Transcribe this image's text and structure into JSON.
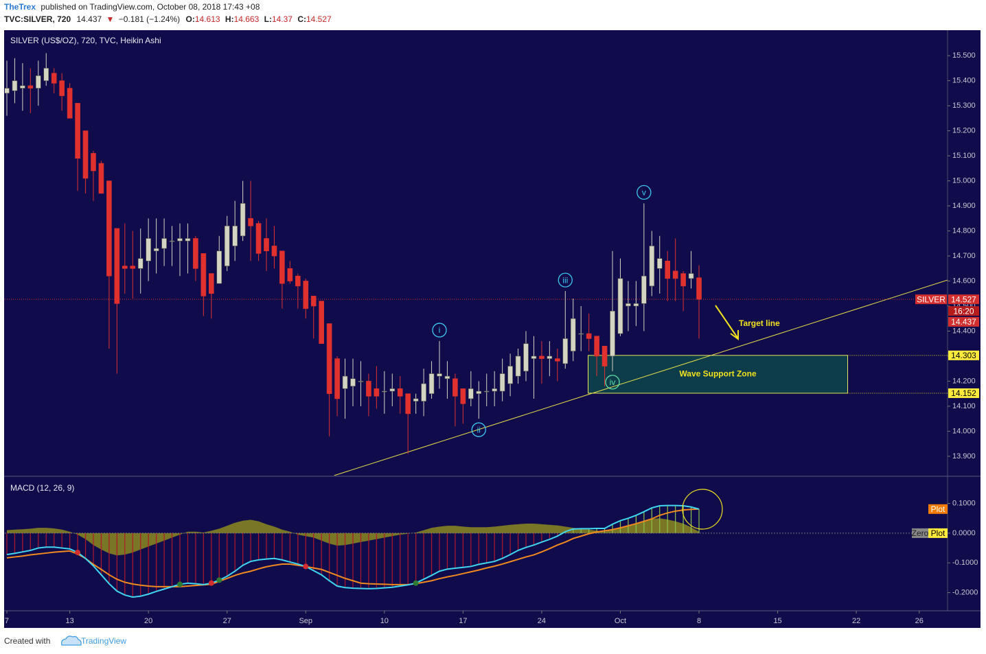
{
  "header": {
    "author": "TheTrex",
    "published": "published on TradingView.com, October 08, 2018 17:43 +08",
    "symbol": "TVC:SILVER, 720",
    "price": 14.437,
    "arrow": "▼",
    "change": "−0.181 (−1.24%)",
    "ohlc_labels": [
      "O:",
      "H:",
      "L:",
      "C:"
    ]
  },
  "chart_data": [
    {
      "type": "candlestick",
      "title": "SILVER (US$/OZ), 720, TVC, Heikin Ashi",
      "open": [
        15.35,
        15.36,
        15.37,
        15.38,
        15.37,
        15.4,
        15.43,
        15.4,
        15.37,
        15.31,
        15.2,
        15.11,
        15.07,
        15.0,
        14.81,
        14.66,
        14.66,
        14.65,
        14.68,
        14.72,
        14.73,
        14.76,
        14.76,
        14.76,
        14.77,
        14.71,
        14.63,
        14.59,
        14.66,
        14.74,
        14.78,
        14.85,
        14.83,
        14.77,
        14.74,
        14.72,
        14.65,
        14.62,
        14.6,
        14.54,
        14.52,
        14.43,
        14.29,
        14.17,
        14.18,
        14.2,
        14.2,
        14.17,
        14.16,
        14.16,
        14.17,
        14.15,
        14.12,
        14.12,
        14.15,
        14.22,
        14.21,
        14.21,
        14.17,
        14.13,
        14.15,
        14.16,
        14.16,
        14.16,
        14.19,
        14.22,
        14.24,
        14.29,
        14.3,
        14.29,
        14.29,
        14.27,
        14.32,
        14.39,
        14.39,
        14.38,
        14.34,
        14.3,
        14.39,
        14.5,
        14.5,
        14.51,
        14.58,
        14.65,
        14.68,
        14.64,
        14.63,
        14.61,
        14.613
      ],
      "high": [
        15.48,
        15.49,
        15.47,
        15.45,
        15.48,
        15.51,
        15.45,
        15.43,
        15.39,
        15.31,
        15.2,
        15.12,
        15.08,
        15.0,
        14.81,
        14.83,
        14.8,
        14.81,
        14.85,
        14.85,
        14.85,
        14.82,
        14.83,
        14.83,
        14.78,
        14.71,
        14.63,
        14.78,
        14.86,
        14.92,
        15.0,
        15.0,
        14.84,
        14.85,
        14.82,
        14.72,
        14.68,
        14.63,
        14.61,
        14.54,
        14.52,
        14.43,
        14.3,
        14.29,
        14.29,
        14.28,
        14.23,
        14.26,
        14.24,
        14.23,
        14.22,
        14.15,
        14.15,
        14.25,
        14.28,
        14.36,
        14.28,
        14.23,
        14.17,
        14.24,
        14.2,
        14.23,
        14.24,
        14.29,
        14.31,
        14.33,
        14.4,
        14.38,
        14.36,
        14.36,
        14.33,
        14.56,
        14.53,
        14.5,
        14.47,
        14.38,
        14.34,
        14.72,
        14.69,
        14.6,
        14.6,
        14.91,
        14.8,
        14.78,
        14.72,
        14.77,
        14.64,
        14.72,
        14.663
      ],
      "low": [
        15.26,
        15.31,
        15.28,
        15.27,
        15.3,
        15.38,
        15.35,
        15.28,
        15.25,
        14.96,
        14.95,
        14.92,
        14.95,
        14.33,
        14.23,
        14.55,
        14.53,
        14.55,
        14.6,
        14.63,
        14.66,
        14.66,
        14.62,
        14.63,
        14.6,
        14.46,
        14.45,
        14.59,
        14.64,
        14.68,
        14.76,
        14.68,
        14.68,
        14.64,
        14.65,
        14.49,
        14.59,
        14.49,
        14.45,
        14.37,
        14.35,
        13.98,
        14.06,
        14.05,
        14.1,
        14.1,
        14.06,
        14.09,
        14.07,
        14.1,
        14.07,
        13.91,
        14.07,
        14.06,
        14.13,
        14.17,
        14.13,
        14.02,
        14.03,
        14.1,
        14.05,
        14.1,
        14.1,
        14.12,
        14.14,
        14.19,
        14.2,
        14.13,
        14.19,
        14.22,
        14.2,
        14.25,
        14.28,
        14.32,
        14.32,
        14.22,
        14.18,
        14.24,
        14.38,
        14.4,
        14.42,
        14.4,
        14.54,
        14.55,
        14.52,
        14.52,
        14.48,
        14.57,
        14.37
      ],
      "close": [
        15.37,
        15.4,
        15.38,
        15.37,
        15.42,
        15.45,
        15.39,
        15.34,
        15.25,
        15.09,
        15.01,
        15.04,
        14.95,
        14.62,
        14.51,
        14.65,
        14.65,
        14.69,
        14.77,
        14.73,
        14.77,
        14.76,
        14.77,
        14.77,
        14.65,
        14.54,
        14.55,
        14.72,
        14.82,
        14.82,
        14.91,
        14.82,
        14.71,
        14.72,
        14.7,
        14.59,
        14.6,
        14.58,
        14.49,
        14.5,
        14.35,
        14.15,
        14.13,
        14.22,
        14.21,
        14.2,
        14.14,
        14.14,
        14.16,
        14.17,
        14.14,
        14.07,
        14.13,
        14.19,
        14.23,
        14.23,
        14.22,
        14.14,
        14.11,
        14.17,
        14.16,
        14.16,
        14.17,
        14.23,
        14.26,
        14.3,
        14.35,
        14.3,
        14.29,
        14.3,
        14.28,
        14.37,
        14.45,
        14.39,
        14.37,
        14.3,
        14.26,
        14.48,
        14.61,
        14.51,
        14.51,
        14.62,
        14.74,
        14.69,
        14.61,
        14.61,
        14.58,
        14.63,
        14.527
      ],
      "up_color": "#d4d4c2",
      "down_color": "#e0312e",
      "xlim": [
        -0.26,
        119.6
      ],
      "xticks": [
        {
          "value": 0,
          "label": "7"
        },
        {
          "value": 8,
          "label": "13"
        },
        {
          "value": 18,
          "label": "20"
        },
        {
          "value": 28,
          "label": "27"
        },
        {
          "value": 38,
          "label": "Sep"
        },
        {
          "value": 48,
          "label": "10"
        },
        {
          "value": 58,
          "label": "17"
        },
        {
          "value": 68,
          "label": "24"
        },
        {
          "value": 78,
          "label": "Oct"
        },
        {
          "value": 88,
          "label": "8"
        },
        {
          "value": 98,
          "label": "15"
        },
        {
          "value": 108,
          "label": "22"
        },
        {
          "value": 116,
          "label": "26"
        }
      ],
      "ylim": [
        13.823,
        15.599
      ],
      "yticks": [
        {
          "value": 13.9,
          "label": "13.900"
        },
        {
          "value": 14.0,
          "label": "14.000"
        },
        {
          "value": 14.1,
          "label": "14.100"
        },
        {
          "value": 14.2,
          "label": "14.200"
        },
        {
          "value": 14.3,
          "label": "14.300"
        },
        {
          "value": 14.4,
          "label": "14.400"
        },
        {
          "value": 14.5,
          "label": "14.500"
        },
        {
          "value": 14.6,
          "label": "14.600"
        },
        {
          "value": 14.7,
          "label": "14.700"
        },
        {
          "value": 14.8,
          "label": "14.800"
        },
        {
          "value": 14.9,
          "label": "14.900"
        },
        {
          "value": 15.0,
          "label": "15.000"
        },
        {
          "value": 15.1,
          "label": "15.100"
        },
        {
          "value": 15.2,
          "label": "15.200"
        },
        {
          "value": 15.3,
          "label": "15.300"
        },
        {
          "value": 15.4,
          "label": "15.400"
        },
        {
          "value": 15.5,
          "label": "15.500"
        }
      ],
      "last_tag": "SILVER",
      "countdown": "16:20",
      "wave_labels": [
        {
          "text": "i",
          "x": 55,
          "position": "above",
          "color": "#3fc8f2"
        },
        {
          "text": "ii",
          "x": 60,
          "position": "below",
          "color": "#3fc8f2"
        },
        {
          "text": "iii",
          "x": 71,
          "position": "above",
          "color": "#3fc8f2"
        },
        {
          "text": "iv",
          "x": 77,
          "position": "below",
          "color": "#5fe0a8"
        },
        {
          "text": "v",
          "x": 81,
          "position": "above",
          "color": "#3fc8f2"
        }
      ],
      "trend_line": {
        "x": [
          41.6,
          119.6
        ],
        "y": [
          13.823,
          14.604
        ],
        "color": "#e8e04a"
      },
      "support_zone": {
        "label": "Wave Support Zone",
        "x": [
          73.9,
          106.9
        ],
        "y": [
          14.152,
          14.303
        ]
      },
      "target_label": "Target line"
    },
    {
      "type": "macd",
      "title": "MACD (12, 26, 9)",
      "series": [
        {
          "color": "#3fd7f2",
          "values": [
            -0.072,
            -0.068,
            -0.063,
            -0.058,
            -0.05,
            -0.047,
            -0.047,
            -0.05,
            -0.053,
            -0.065,
            -0.085,
            -0.11,
            -0.14,
            -0.17,
            -0.195,
            -0.208,
            -0.215,
            -0.212,
            -0.205,
            -0.196,
            -0.188,
            -0.18,
            -0.172,
            -0.168,
            -0.17,
            -0.173,
            -0.168,
            -0.158,
            -0.145,
            -0.128,
            -0.108,
            -0.095,
            -0.09,
            -0.087,
            -0.085,
            -0.09,
            -0.097,
            -0.104,
            -0.112,
            -0.126,
            -0.14,
            -0.16,
            -0.178,
            -0.183,
            -0.185,
            -0.186,
            -0.187,
            -0.186,
            -0.184,
            -0.182,
            -0.178,
            -0.174,
            -0.168,
            -0.155,
            -0.142,
            -0.128,
            -0.121,
            -0.118,
            -0.115,
            -0.112,
            -0.105,
            -0.1,
            -0.095,
            -0.085,
            -0.072,
            -0.058,
            -0.048,
            -0.04,
            -0.03,
            -0.021,
            -0.01,
            0.005,
            0.014,
            0.015,
            0.015,
            0.016,
            0.016,
            0.03,
            0.042,
            0.05,
            0.06,
            0.072,
            0.085,
            0.092,
            0.093,
            0.093,
            0.092,
            0.088,
            0.081
          ]
        },
        {
          "color": "#f28a1e",
          "values": [
            -0.083,
            -0.08,
            -0.077,
            -0.073,
            -0.07,
            -0.067,
            -0.064,
            -0.062,
            -0.06,
            -0.07,
            -0.085,
            -0.105,
            -0.122,
            -0.14,
            -0.155,
            -0.165,
            -0.171,
            -0.175,
            -0.178,
            -0.18,
            -0.18,
            -0.18,
            -0.18,
            -0.178,
            -0.176,
            -0.174,
            -0.172,
            -0.162,
            -0.152,
            -0.142,
            -0.134,
            -0.128,
            -0.12,
            -0.113,
            -0.108,
            -0.104,
            -0.104,
            -0.108,
            -0.112,
            -0.117,
            -0.122,
            -0.132,
            -0.142,
            -0.152,
            -0.16,
            -0.168,
            -0.17,
            -0.171,
            -0.172,
            -0.173,
            -0.173,
            -0.173,
            -0.17,
            -0.165,
            -0.16,
            -0.153,
            -0.147,
            -0.142,
            -0.136,
            -0.13,
            -0.124,
            -0.117,
            -0.111,
            -0.104,
            -0.096,
            -0.088,
            -0.08,
            -0.073,
            -0.063,
            -0.052,
            -0.04,
            -0.03,
            -0.018,
            -0.01,
            -0.002,
            0.004,
            0.008,
            0.012,
            0.018,
            0.025,
            0.032,
            0.04,
            0.048,
            0.06,
            0.068,
            0.074,
            0.078,
            0.08,
            0.081
          ]
        },
        {
          "color": "#8c8a1e",
          "values": [
            0.01,
            0.012,
            0.013,
            0.015,
            0.018,
            0.018,
            0.016,
            0.012,
            0.005,
            -0.005,
            -0.02,
            -0.04,
            -0.055,
            -0.068,
            -0.075,
            -0.072,
            -0.065,
            -0.055,
            -0.045,
            -0.035,
            -0.025,
            -0.015,
            -0.005,
            0.005,
            0.005,
            0.002,
            0.008,
            0.015,
            0.025,
            0.035,
            0.042,
            0.045,
            0.04,
            0.03,
            0.022,
            0.012,
            0.005,
            -0.005,
            -0.01,
            -0.015,
            -0.025,
            -0.035,
            -0.042,
            -0.04,
            -0.035,
            -0.03,
            -0.025,
            -0.02,
            -0.015,
            -0.01,
            -0.005,
            -0.002,
            0.002,
            0.01,
            0.018,
            0.022,
            0.025,
            0.025,
            0.022,
            0.02,
            0.02,
            0.02,
            0.022,
            0.025,
            0.028,
            0.03,
            0.032,
            0.032,
            0.03,
            0.028,
            0.026,
            0.022,
            0.018,
            0.015,
            0.012,
            0.008,
            0.005,
            0.012,
            0.02,
            0.025,
            0.03,
            0.04,
            0.048,
            0.05,
            0.046,
            0.04,
            0.032,
            0.02,
            0.005
          ]
        }
      ],
      "bar_colors": [
        "#b0182a",
        "#8bc34a"
      ],
      "crossovers": [
        {
          "x": 9,
          "color": "#d32f2f"
        },
        {
          "x": 22,
          "color": "#2e7d32"
        },
        {
          "x": 26,
          "color": "#d32f2f"
        },
        {
          "x": 27,
          "color": "#2e7d32"
        },
        {
          "x": 38,
          "color": "#d32f2f"
        },
        {
          "x": 52,
          "color": "#2e7d32"
        }
      ],
      "ylim": [
        -0.261,
        0.189
      ],
      "yticks": [
        {
          "value": 0.1,
          "label": "0.1000"
        },
        {
          "value": 0.0,
          "label": "0.0000"
        },
        {
          "value": -0.1,
          "label": "-0.1000"
        },
        {
          "value": -0.2,
          "label": "-0.2000"
        }
      ],
      "signal_tag": "Plot",
      "zero_tag": "Zero",
      "zero_plot_tag": "Plot"
    }
  ],
  "footer": {
    "created": "Created with",
    "brand": "TradingView"
  }
}
